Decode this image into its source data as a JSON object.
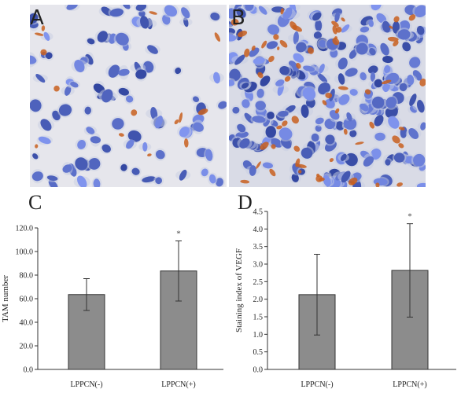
{
  "panels": {
    "a": {
      "label": "A"
    },
    "b": {
      "label": "B"
    }
  },
  "chart_data": [
    {
      "panel_label": "C",
      "type": "bar",
      "categories": [
        "LPPCN(-)",
        "LPPCN(+)"
      ],
      "values": [
        63.5,
        83.5
      ],
      "error": [
        13.5,
        25.5
      ],
      "significance": [
        "",
        "*"
      ],
      "title": "",
      "xlabel": "",
      "ylabel": "TAM number",
      "ylim": [
        0,
        120
      ],
      "yticks": [
        "0.0",
        "20.0",
        "40.0",
        "60.0",
        "80.0",
        "100.0",
        "120.0"
      ],
      "bar_color": "#8c8c8c"
    },
    {
      "panel_label": "D",
      "type": "bar",
      "categories": [
        "LPPCN(-)",
        "LPPCN(+)"
      ],
      "values": [
        2.13,
        2.82
      ],
      "error": [
        1.15,
        1.33
      ],
      "significance": [
        "",
        "*"
      ],
      "title": "",
      "xlabel": "",
      "ylabel": "Staining index of VEGF",
      "ylim": [
        0,
        4.5
      ],
      "yticks": [
        "0.0",
        "0.5",
        "1.0",
        "1.5",
        "2.0",
        "2.5",
        "3.0",
        "3.5",
        "4.0",
        "4.5"
      ],
      "bar_color": "#8c8c8c"
    }
  ]
}
